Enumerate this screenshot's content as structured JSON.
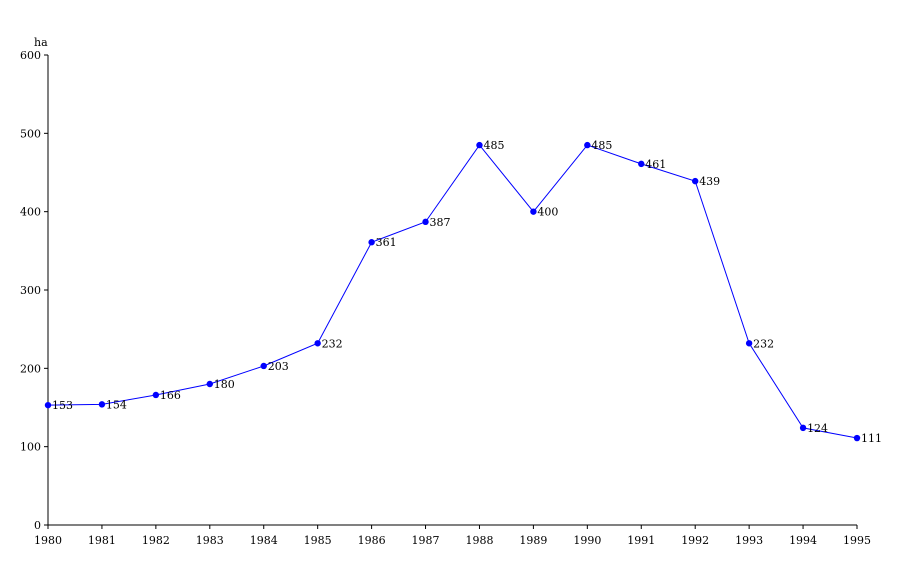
{
  "chart_data": {
    "type": "line",
    "y_unit": "ha",
    "x": [
      "1980",
      "1981",
      "1982",
      "1983",
      "1984",
      "1985",
      "1986",
      "1987",
      "1988",
      "1989",
      "1990",
      "1991",
      "1992",
      "1993",
      "1994",
      "1995"
    ],
    "series": [
      {
        "values": [
          153,
          154,
          166,
          180,
          203,
          232,
          361,
          387,
          485,
          400,
          485,
          461,
          439,
          232,
          124,
          111
        ]
      }
    ],
    "ylim": [
      0,
      600
    ],
    "yticks": [
      0,
      100,
      200,
      300,
      400,
      500,
      600
    ],
    "grid": false,
    "legend": "none",
    "data_labels": true
  },
  "colors": {
    "series": "#0000ff",
    "axes": "#000000"
  }
}
